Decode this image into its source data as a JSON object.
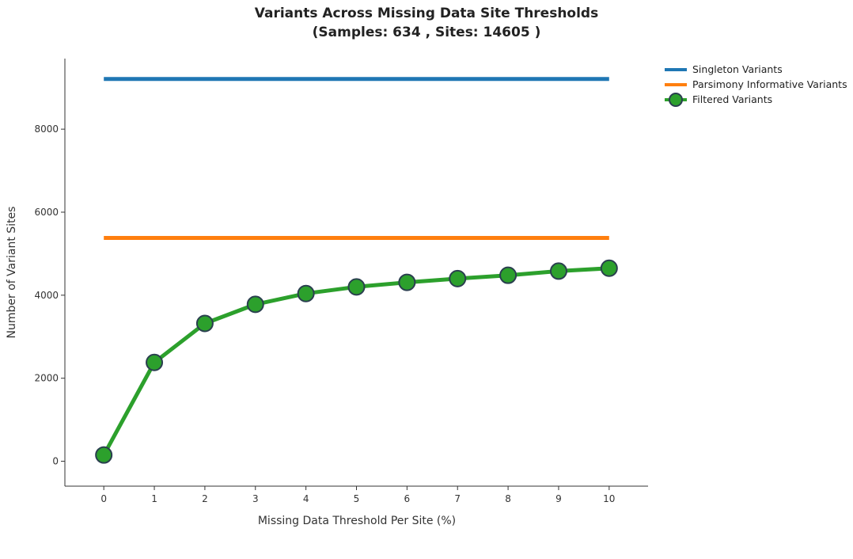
{
  "chart_data": {
    "type": "line",
    "title": "Variants Across Missing Data Site Thresholds",
    "subtitle": "(Samples: 634 , Sites: 14605 )",
    "xlabel": "Missing Data Threshold Per Site (%)",
    "ylabel": "Number of Variant Sites",
    "x": [
      0,
      1,
      2,
      3,
      4,
      5,
      6,
      7,
      8,
      9,
      10
    ],
    "xlim": [
      -0.77,
      10.77
    ],
    "ylim": [
      -600,
      9700
    ],
    "x_ticks": [
      0,
      1,
      2,
      3,
      4,
      5,
      6,
      7,
      8,
      9,
      10
    ],
    "y_ticks": [
      0,
      2000,
      4000,
      6000,
      8000
    ],
    "grid": false,
    "legend_position": "top-right",
    "series": [
      {
        "name": "Singleton Variants",
        "color": "#1f77b4",
        "markers": false,
        "values": [
          9210,
          9210,
          9210,
          9210,
          9210,
          9210,
          9210,
          9210,
          9210,
          9210,
          9210
        ]
      },
      {
        "name": "Parsimony Informative Variants",
        "color": "#ff7f0e",
        "markers": false,
        "values": [
          5380,
          5380,
          5380,
          5380,
          5380,
          5380,
          5380,
          5380,
          5380,
          5380,
          5380
        ]
      },
      {
        "name": "Filtered Variants",
        "color": "#2ca02c",
        "markers": true,
        "values": [
          150,
          2380,
          3320,
          3780,
          4040,
          4200,
          4310,
          4400,
          4480,
          4580,
          4650
        ]
      }
    ]
  }
}
